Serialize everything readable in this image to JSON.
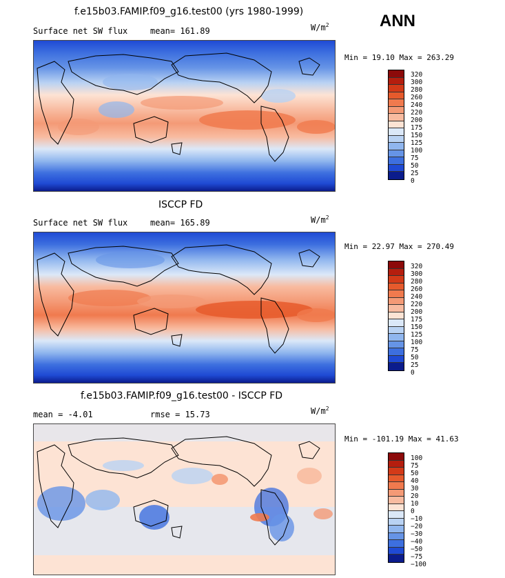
{
  "header": {
    "main_title": "f.e15b03.FAMIP.f09_g16.test00 (yrs 1980-1999)",
    "season": "ANN"
  },
  "panels": [
    {
      "title": "",
      "left_label": "Surface net SW flux",
      "mean_text": "mean= 161.89",
      "units_base": "W/m",
      "units_exp": "2",
      "minmax": "Min =  19.10 Max = 263.29",
      "levels": [
        "320",
        "300",
        "280",
        "260",
        "240",
        "220",
        "200",
        "175",
        "150",
        "125",
        "100",
        "75",
        "50",
        "25",
        "0"
      ]
    },
    {
      "title": "ISCCP FD",
      "left_label": "Surface net SW flux",
      "mean_text": "mean= 165.89",
      "units_base": "W/m",
      "units_exp": "2",
      "minmax": "Min =  22.97 Max = 270.49",
      "levels": [
        "320",
        "300",
        "280",
        "260",
        "240",
        "220",
        "200",
        "175",
        "150",
        "125",
        "100",
        "75",
        "50",
        "25",
        "0"
      ]
    },
    {
      "title": "f.e15b03.FAMIP.f09_g16.test00 - ISCCP FD",
      "left_label": "mean =  -4.01",
      "mean_text": "rmse =  15.73",
      "units_base": "W/m",
      "units_exp": "2",
      "minmax": "Min = -101.19 Max =  41.63",
      "levels": [
        "100",
        "75",
        "50",
        "40",
        "30",
        "20",
        "10",
        "0",
        "−10",
        "−20",
        "−30",
        "−40",
        "−50",
        "−75",
        "−100"
      ]
    }
  ],
  "colors": {
    "palette_top_to_bottom": [
      "#8c0a0a",
      "#b51e0e",
      "#d33a18",
      "#e65a2c",
      "#f07a4e",
      "#f49a76",
      "#f8bba0",
      "#fde3d4",
      "#dbe8f8",
      "#b9d2f3",
      "#90b6ee",
      "#6694e6",
      "#3d6fdf",
      "#1f4ad4",
      "#0b1c8c"
    ]
  },
  "chart_data": [
    {
      "type": "heatmap",
      "title": "f.e15b03.FAMIP.f09_g16.test00 (yrs 1980-1999)",
      "variable": "Surface net SW flux",
      "units": "W/m2",
      "mean": 161.89,
      "min": 19.1,
      "max": 263.29,
      "levels": [
        0,
        25,
        50,
        75,
        100,
        125,
        150,
        175,
        200,
        220,
        240,
        260,
        280,
        300,
        320
      ]
    },
    {
      "type": "heatmap",
      "title": "ISCCP FD",
      "variable": "Surface net SW flux",
      "units": "W/m2",
      "mean": 165.89,
      "min": 22.97,
      "max": 270.49,
      "levels": [
        0,
        25,
        50,
        75,
        100,
        125,
        150,
        175,
        200,
        220,
        240,
        260,
        280,
        300,
        320
      ]
    },
    {
      "type": "heatmap",
      "title": "f.e15b03.FAMIP.f09_g16.test00 - ISCCP FD",
      "units": "W/m2",
      "mean": -4.01,
      "rmse": 15.73,
      "min": -101.19,
      "max": 41.63,
      "levels": [
        -100,
        -75,
        -50,
        -40,
        -30,
        -20,
        -10,
        0,
        10,
        20,
        30,
        40,
        50,
        75,
        100
      ]
    }
  ]
}
